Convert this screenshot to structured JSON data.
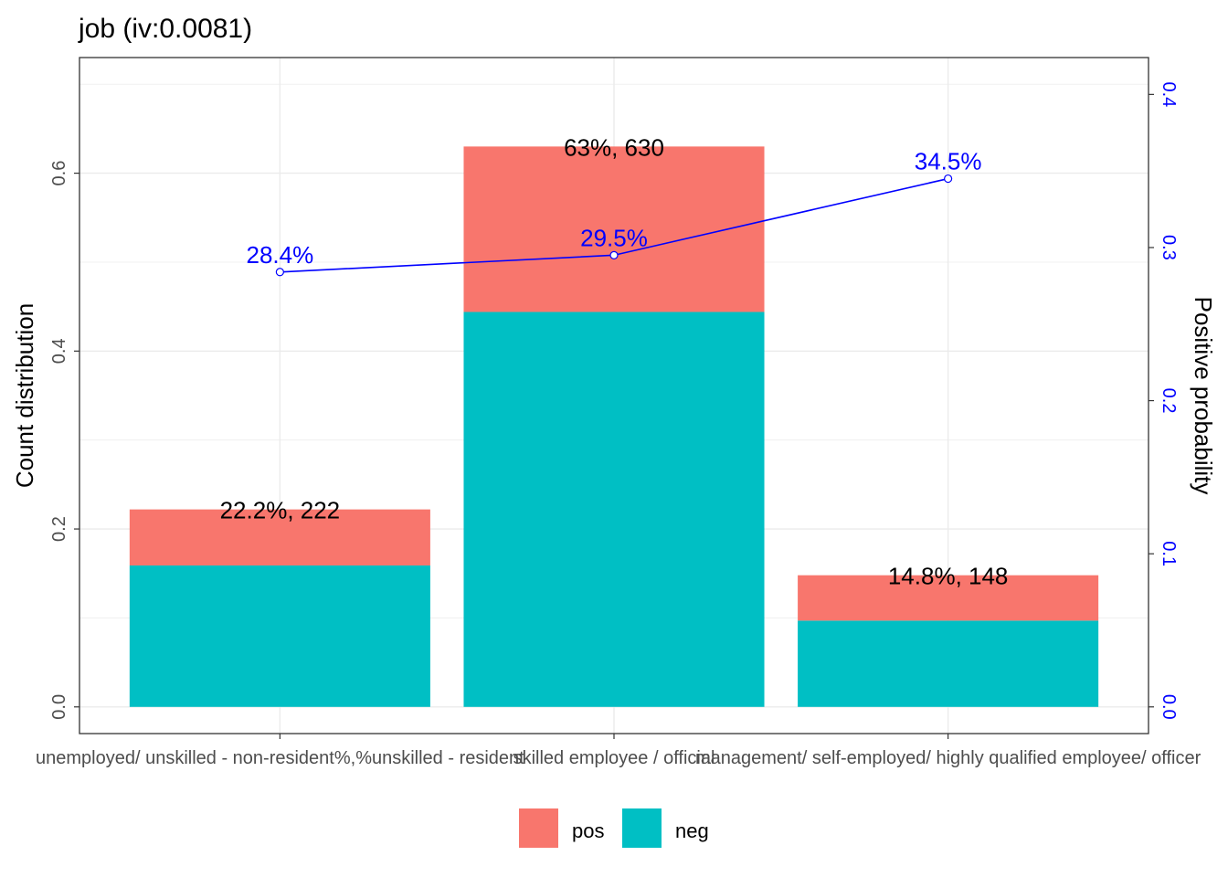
{
  "chart_data": {
    "type": "bar",
    "title": "job  (iv:0.0081)",
    "categories": [
      "unemployed/ unskilled - non-resident%,%unskilled - resident",
      "skilled employee / official",
      "management/ self-employed/ highly qualified employee/ officer"
    ],
    "series": [
      {
        "name": "pos",
        "color": "#F8766D",
        "values": [
          0.063,
          0.186,
          0.051
        ]
      },
      {
        "name": "neg",
        "color": "#00BFC4",
        "values": [
          0.159,
          0.444,
          0.097
        ]
      }
    ],
    "bar_labels": [
      "22.2%, 222",
      "63%, 630",
      "14.8%, 148"
    ],
    "line": {
      "color": "#0000FF",
      "values": [
        0.284,
        0.295,
        0.345
      ],
      "labels": [
        "28.4%",
        "29.5%",
        "34.5%"
      ]
    },
    "ylabel": "Count distribution",
    "ylabel_right": "Positive probability",
    "ylim": [
      -0.03,
      0.73
    ],
    "ylim_right": [
      -0.01743,
      0.42408
    ],
    "yticks": [
      0.0,
      0.2,
      0.4,
      0.6
    ],
    "yticks_labels": [
      "0.0",
      "0.2",
      "0.4",
      "0.6"
    ],
    "yticks_right": [
      0.0,
      0.1,
      0.2,
      0.3,
      0.4
    ],
    "yticks_right_labels": [
      "0.0",
      "0.1",
      "0.2",
      "0.3",
      "0.4"
    ],
    "legend": {
      "position": "bottom",
      "entries": [
        "pos",
        "neg"
      ]
    },
    "grid": true
  }
}
